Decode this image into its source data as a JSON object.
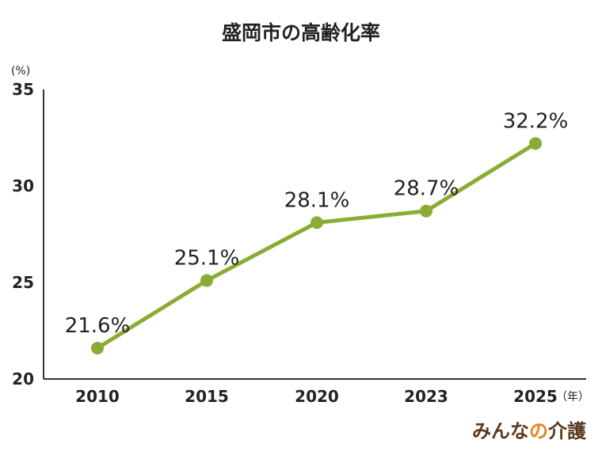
{
  "chart_data": {
    "type": "line",
    "title": "盛岡市の高齢化率",
    "y_unit": "(%)",
    "x_unit": "（年）",
    "categories": [
      "2010",
      "2015",
      "2020",
      "2023",
      "2025"
    ],
    "values": [
      21.6,
      25.1,
      28.1,
      28.7,
      32.2
    ],
    "data_labels": [
      "21.6%",
      "25.1%",
      "28.1%",
      "28.7%",
      "32.2%"
    ],
    "ylim": [
      20,
      35
    ],
    "yticks": [
      "20",
      "25",
      "30",
      "35"
    ],
    "grid": false,
    "line_color": "#8aac34"
  },
  "brand": {
    "part1": "みんな",
    "part2": "の",
    "part3": "介護"
  }
}
